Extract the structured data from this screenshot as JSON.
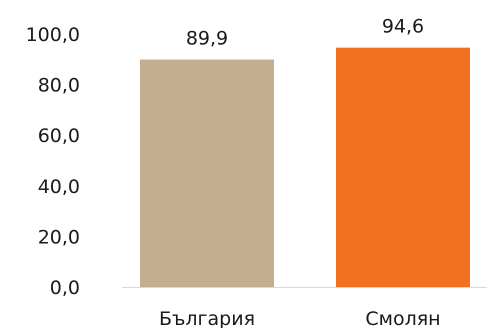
{
  "chart_data": {
    "type": "bar",
    "categories": [
      "България",
      "Смолян"
    ],
    "values": [
      89.9,
      94.6
    ],
    "value_labels": [
      "89,9",
      "94,6"
    ],
    "colors": [
      "#c4ad91",
      "#f37021"
    ],
    "ylim": [
      0,
      100
    ],
    "y_ticks": [
      {
        "value": 0,
        "label": "0,0"
      },
      {
        "value": 20,
        "label": "20,0"
      },
      {
        "value": 40,
        "label": "40,0"
      },
      {
        "value": 60,
        "label": "60,0"
      },
      {
        "value": 80,
        "label": "80,0"
      },
      {
        "value": 100,
        "label": "100,0"
      }
    ],
    "grid": false,
    "title": "",
    "xlabel": "",
    "ylabel": ""
  }
}
